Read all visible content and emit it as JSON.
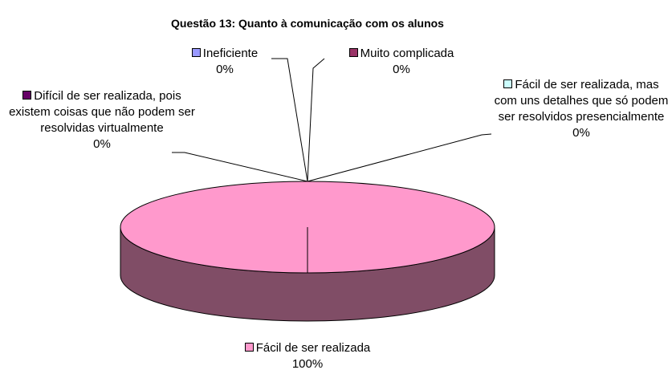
{
  "chart_data": {
    "type": "pie",
    "title": "Questão 13: Quanto à comunicação com os alunos",
    "categories": [
      "Ineficiente",
      "Muito complicada",
      "Fácil de ser realizada, mas com uns detalhes que só podem ser resolvidos presencialmente",
      "Fácil de ser realizada",
      "Difícil de ser realizada, pois existem coisas que não podem ser resolvidas virtualmente"
    ],
    "values": [
      0,
      0,
      0,
      100,
      0
    ],
    "value_labels": [
      "0%",
      "0%",
      "0%",
      "100%",
      "0%"
    ],
    "colors": [
      "#9999ff",
      "#993366",
      "#ccffff",
      "#ff99cc",
      "#660066"
    ]
  }
}
